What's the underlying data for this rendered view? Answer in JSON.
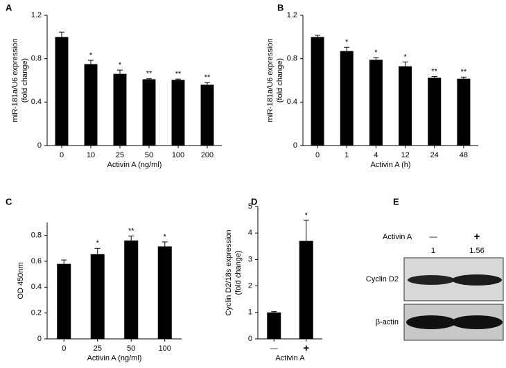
{
  "chart_data": [
    {
      "type": "bar",
      "label": "A",
      "categories": [
        "0",
        "10",
        "25",
        "50",
        "100",
        "200"
      ],
      "values": [
        1.0,
        0.75,
        0.66,
        0.61,
        0.605,
        0.56
      ],
      "errors": [
        0.045,
        0.035,
        0.035,
        0.005,
        0.007,
        0.02
      ],
      "annotations": [
        null,
        "*",
        "*",
        "**",
        "**",
        "**"
      ],
      "color": "#000000",
      "ylim": [
        0,
        1.2
      ],
      "yticks": [
        0,
        0.4,
        0.8,
        1.2
      ],
      "xlabel": "Activin A (ng/ml)",
      "ylabel": [
        "miR-181a/U6 expression",
        "(fold change)"
      ]
    },
    {
      "type": "bar",
      "label": "B",
      "categories": [
        "0",
        "1",
        "4",
        "12",
        "24",
        "48"
      ],
      "values": [
        1.0,
        0.87,
        0.79,
        0.73,
        0.625,
        0.615
      ],
      "errors": [
        0.015,
        0.035,
        0.02,
        0.04,
        0.01,
        0.015
      ],
      "annotations": [
        null,
        "*",
        "*",
        "*",
        "**",
        "**"
      ],
      "color": "#000000",
      "ylim": [
        0,
        1.2
      ],
      "yticks": [
        0,
        0.4,
        0.8,
        1.2
      ],
      "xlabel": "Activin A (h)",
      "ylabel": [
        "miR-181a/U6 expression",
        "(fold change)"
      ]
    },
    {
      "type": "bar",
      "label": "C",
      "categories": [
        "0",
        "25",
        "50",
        "100"
      ],
      "values": [
        0.58,
        0.655,
        0.76,
        0.715
      ],
      "errors": [
        0.03,
        0.045,
        0.035,
        0.035
      ],
      "annotations": [
        null,
        "*",
        "**",
        "*"
      ],
      "color": "#000000",
      "ylim": [
        0,
        0.9
      ],
      "yticks": [
        0,
        0.2,
        0.4,
        0.6,
        0.8
      ],
      "xlabel": "Activin A (ng/ml)",
      "ylabel": [
        "OD 450nm"
      ]
    },
    {
      "type": "bar",
      "label": "D",
      "categories": [
        "—",
        "+"
      ],
      "values": [
        1.0,
        3.7
      ],
      "errors": [
        0.03,
        0.78
      ],
      "annotations": [
        null,
        "*"
      ],
      "color": "#000000",
      "ylim": [
        0,
        5
      ],
      "yticks": [
        0,
        1,
        2,
        3,
        4,
        5
      ],
      "xlabel": "Activin A",
      "ylabel": [
        "Cyclin D2/18s expression",
        "(fold change)"
      ]
    }
  ],
  "blot": {
    "label": "E",
    "treatment": "Activin A",
    "lanes": [
      "—",
      "+"
    ],
    "ratios": [
      "1",
      "1.56"
    ],
    "rows": [
      "Cyclin D2",
      "β-actin"
    ]
  }
}
